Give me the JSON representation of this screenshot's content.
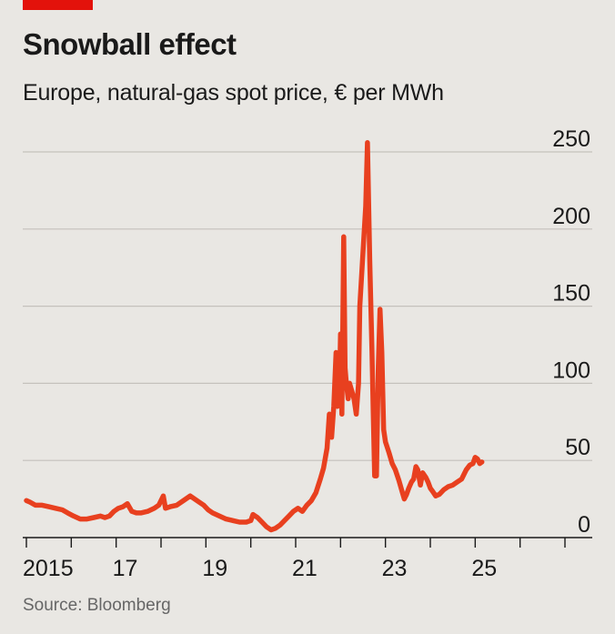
{
  "accent_color": "#e3120b",
  "title": "Snowball effect",
  "subtitle": "Europe, natural-gas spot price, € per MWh",
  "source": "Source: Bloomberg",
  "chart_data": {
    "type": "line",
    "title": "Snowball effect",
    "subtitle": "Europe, natural-gas spot price, € per MWh",
    "xlabel": "",
    "ylabel": "€ per MWh",
    "xlim": [
      2015,
      2027
    ],
    "ylim": [
      0,
      250
    ],
    "grid": true,
    "y_ticks": [
      0,
      50,
      100,
      150,
      200,
      250
    ],
    "y_tick_labels": [
      "0",
      "50",
      "100",
      "150",
      "200",
      "250"
    ],
    "x_tick_labels": [
      {
        "x": 2015,
        "label": "2015"
      },
      {
        "x": 2017,
        "label": "17"
      },
      {
        "x": 2019,
        "label": "19"
      },
      {
        "x": 2021,
        "label": "21"
      },
      {
        "x": 2023,
        "label": "23"
      },
      {
        "x": 2025,
        "label": "25"
      }
    ],
    "series": [
      {
        "color": "#e8401f",
        "points": [
          [
            2015.0,
            24
          ],
          [
            2015.08,
            23
          ],
          [
            2015.2,
            21
          ],
          [
            2015.35,
            21
          ],
          [
            2015.5,
            20
          ],
          [
            2015.65,
            19
          ],
          [
            2015.8,
            18
          ],
          [
            2015.92,
            16
          ],
          [
            2016.05,
            14
          ],
          [
            2016.2,
            12
          ],
          [
            2016.35,
            12
          ],
          [
            2016.5,
            13
          ],
          [
            2016.65,
            14
          ],
          [
            2016.75,
            13
          ],
          [
            2016.85,
            14
          ],
          [
            2016.95,
            17
          ],
          [
            2017.05,
            19
          ],
          [
            2017.15,
            20
          ],
          [
            2017.25,
            22
          ],
          [
            2017.35,
            17
          ],
          [
            2017.45,
            16
          ],
          [
            2017.55,
            16
          ],
          [
            2017.7,
            17
          ],
          [
            2017.85,
            19
          ],
          [
            2017.95,
            21
          ],
          [
            2018.05,
            27
          ],
          [
            2018.1,
            19
          ],
          [
            2018.2,
            20
          ],
          [
            2018.35,
            21
          ],
          [
            2018.5,
            24
          ],
          [
            2018.65,
            27
          ],
          [
            2018.75,
            25
          ],
          [
            2018.85,
            23
          ],
          [
            2018.95,
            21
          ],
          [
            2019.05,
            18
          ],
          [
            2019.15,
            16
          ],
          [
            2019.3,
            14
          ],
          [
            2019.45,
            12
          ],
          [
            2019.6,
            11
          ],
          [
            2019.75,
            10
          ],
          [
            2019.9,
            10
          ],
          [
            2020.0,
            11
          ],
          [
            2020.05,
            15
          ],
          [
            2020.15,
            13
          ],
          [
            2020.25,
            10
          ],
          [
            2020.35,
            7
          ],
          [
            2020.45,
            5
          ],
          [
            2020.55,
            6
          ],
          [
            2020.65,
            8
          ],
          [
            2020.75,
            11
          ],
          [
            2020.85,
            14
          ],
          [
            2020.95,
            17
          ],
          [
            2021.05,
            19
          ],
          [
            2021.15,
            17
          ],
          [
            2021.25,
            21
          ],
          [
            2021.35,
            24
          ],
          [
            2021.45,
            29
          ],
          [
            2021.55,
            38
          ],
          [
            2021.62,
            45
          ],
          [
            2021.7,
            58
          ],
          [
            2021.75,
            80
          ],
          [
            2021.8,
            65
          ],
          [
            2021.85,
            85
          ],
          [
            2021.9,
            120
          ],
          [
            2021.93,
            85
          ],
          [
            2021.97,
            90
          ],
          [
            2022.0,
            132
          ],
          [
            2022.03,
            80
          ],
          [
            2022.07,
            195
          ],
          [
            2022.1,
            110
          ],
          [
            2022.13,
            100
          ],
          [
            2022.17,
            90
          ],
          [
            2022.2,
            100
          ],
          [
            2022.25,
            95
          ],
          [
            2022.3,
            90
          ],
          [
            2022.35,
            80
          ],
          [
            2022.4,
            100
          ],
          [
            2022.43,
            150
          ],
          [
            2022.47,
            170
          ],
          [
            2022.52,
            195
          ],
          [
            2022.56,
            215
          ],
          [
            2022.6,
            256
          ],
          [
            2022.65,
            180
          ],
          [
            2022.7,
            120
          ],
          [
            2022.73,
            80
          ],
          [
            2022.76,
            40
          ],
          [
            2022.8,
            40
          ],
          [
            2022.84,
            110
          ],
          [
            2022.88,
            148
          ],
          [
            2022.92,
            120
          ],
          [
            2022.96,
            70
          ],
          [
            2023.0,
            62
          ],
          [
            2023.08,
            55
          ],
          [
            2023.15,
            48
          ],
          [
            2023.22,
            44
          ],
          [
            2023.3,
            37
          ],
          [
            2023.37,
            30
          ],
          [
            2023.42,
            25
          ],
          [
            2023.47,
            28
          ],
          [
            2023.52,
            32
          ],
          [
            2023.58,
            36
          ],
          [
            2023.63,
            38
          ],
          [
            2023.68,
            46
          ],
          [
            2023.72,
            44
          ],
          [
            2023.78,
            34
          ],
          [
            2023.83,
            42
          ],
          [
            2023.9,
            39
          ],
          [
            2023.95,
            36
          ],
          [
            2024.0,
            32
          ],
          [
            2024.05,
            30
          ],
          [
            2024.12,
            27
          ],
          [
            2024.2,
            28
          ],
          [
            2024.3,
            31
          ],
          [
            2024.4,
            33
          ],
          [
            2024.5,
            34
          ],
          [
            2024.6,
            36
          ],
          [
            2024.7,
            38
          ],
          [
            2024.8,
            44
          ],
          [
            2024.88,
            47
          ],
          [
            2024.95,
            48
          ],
          [
            2025.0,
            52
          ],
          [
            2025.05,
            51
          ],
          [
            2025.1,
            48
          ],
          [
            2025.15,
            49
          ]
        ]
      }
    ]
  }
}
